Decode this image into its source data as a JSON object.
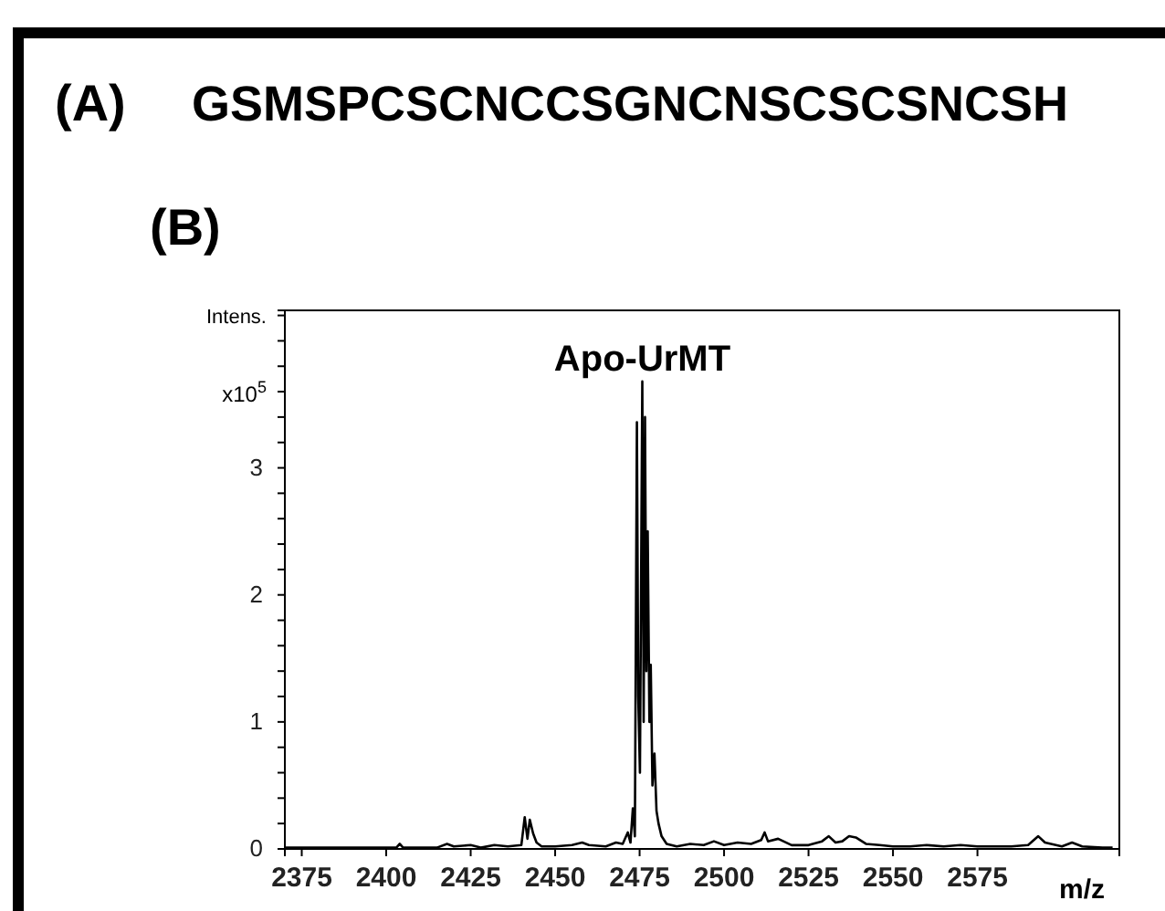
{
  "chart_data": {
    "type": "line",
    "xlabel": "m/z",
    "ylabel": "Intens.",
    "annotations": [
      "(A)",
      "GSMSPCSCNCCSGNCNSCSCSNCSH",
      "(B)",
      "x10$^{5}$",
      {
        "text": "Apo-UrMT",
        "x": 2475.8,
        "y": 3.68
      }
    ],
    "xlim": [
      2370,
      2617
    ],
    "ylim": [
      0,
      4.24
    ],
    "xticks": [
      2375,
      2400,
      2425,
      2450,
      2475,
      2500,
      2525,
      2550,
      2575
    ],
    "yticks": [
      0,
      {
        "value": 0.2,
        "label": null
      },
      {
        "value": 0.4,
        "label": null
      },
      {
        "value": 0.6,
        "label": null
      },
      {
        "value": 0.8,
        "label": null
      },
      1,
      {
        "value": 1.2,
        "label": null
      },
      {
        "value": 1.4,
        "label": null
      },
      {
        "value": 1.6,
        "label": null
      },
      {
        "value": 1.8,
        "label": null
      },
      2,
      {
        "value": 2.2,
        "label": null
      },
      {
        "value": 2.4,
        "label": null
      },
      {
        "value": 2.6,
        "label": null
      },
      {
        "value": 2.8,
        "label": null
      },
      3,
      {
        "value": 3.2,
        "label": null
      },
      {
        "value": 3.4,
        "label": null
      },
      {
        "value": 3.6,
        "label": null
      },
      {
        "value": 3.8,
        "label": null
      },
      {
        "value": 4.0,
        "label": null
      },
      {
        "value": 4.2,
        "label": null
      }
    ],
    "grid": false,
    "marker": "none",
    "line_style": "solid",
    "series": [
      {
        "color": "#000000",
        "x": [
          2370,
          2380,
          2390,
          2403,
          2404,
          2405,
          2415,
          2418,
          2420,
          2425,
          2428,
          2432,
          2436,
          2440,
          2441,
          2441.8,
          2442.5,
          2443.5,
          2444.5,
          2446,
          2450,
          2455,
          2458,
          2460,
          2465,
          2468,
          2470,
          2471.5,
          2472.3,
          2473,
          2473.6,
          2474.2,
          2474.6,
          2475.1,
          2475.8,
          2476.2,
          2476.6,
          2477,
          2477.4,
          2477.9,
          2478.3,
          2478.8,
          2479.4,
          2480,
          2480.6,
          2481.5,
          2483,
          2486,
          2490,
          2494,
          2497,
          2500,
          2504,
          2508,
          2511,
          2512,
          2513,
          2516,
          2520,
          2525,
          2529,
          2531,
          2533,
          2535,
          2537,
          2539,
          2542,
          2546,
          2550,
          2555,
          2560,
          2565,
          2570,
          2575,
          2580,
          2585,
          2590,
          2593,
          2595,
          2600,
          2603,
          2606,
          2612,
          2615
        ],
        "values": [
          0.01,
          0.01,
          0.01,
          0.01,
          0.04,
          0.01,
          0.01,
          0.04,
          0.02,
          0.03,
          0.01,
          0.03,
          0.02,
          0.03,
          0.25,
          0.08,
          0.23,
          0.12,
          0.05,
          0.02,
          0.02,
          0.03,
          0.05,
          0.03,
          0.02,
          0.05,
          0.04,
          0.13,
          0.05,
          0.32,
          0.1,
          3.36,
          1.2,
          0.6,
          3.68,
          1.0,
          3.4,
          1.4,
          2.5,
          1.0,
          1.45,
          0.5,
          0.75,
          0.3,
          0.2,
          0.1,
          0.04,
          0.02,
          0.04,
          0.03,
          0.06,
          0.03,
          0.05,
          0.04,
          0.07,
          0.13,
          0.06,
          0.08,
          0.03,
          0.03,
          0.06,
          0.1,
          0.05,
          0.06,
          0.1,
          0.09,
          0.04,
          0.03,
          0.02,
          0.02,
          0.03,
          0.02,
          0.03,
          0.02,
          0.02,
          0.02,
          0.03,
          0.1,
          0.05,
          0.02,
          0.05,
          0.02,
          0.01,
          0.01
        ]
      }
    ]
  }
}
